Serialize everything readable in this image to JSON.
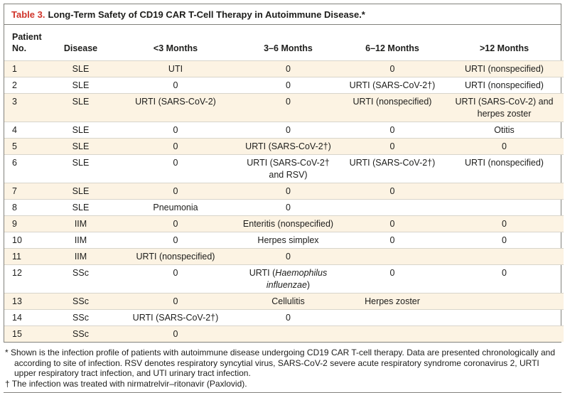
{
  "title": {
    "label": "Table 3.",
    "text": "Long-Term Safety of CD19 CAR T-Cell Therapy in Autoimmune Disease.*"
  },
  "table": {
    "columns": [
      {
        "label": "Patient\nNo.",
        "align": "left"
      },
      {
        "label": "Disease",
        "align": "center"
      },
      {
        "label": "<3 Months",
        "align": "center"
      },
      {
        "label": "3–6 Months",
        "align": "center"
      },
      {
        "label": "6–12 Months",
        "align": "center"
      },
      {
        "label": ">12 Months",
        "align": "center"
      }
    ],
    "rows": [
      [
        "1",
        "SLE",
        "UTI",
        "0",
        "0",
        "URTI (nonspecified)"
      ],
      [
        "2",
        "SLE",
        "0",
        "0",
        "URTI (SARS-CoV-2†)",
        "URTI (nonspecified)"
      ],
      [
        "3",
        "SLE",
        "URTI (SARS-CoV-2)",
        "0",
        "URTI (nonspecified)",
        "URTI (SARS-CoV-2) and her­pes zoster"
      ],
      [
        "4",
        "SLE",
        "0",
        "0",
        "0",
        "Otitis"
      ],
      [
        "5",
        "SLE",
        "0",
        "URTI (SARS-CoV-2†)",
        "0",
        "0"
      ],
      [
        "6",
        "SLE",
        "0",
        "URTI (SARS-CoV-2† and RSV)",
        "URTI (SARS-CoV-2†)",
        "URTI (nonspecified)"
      ],
      [
        "7",
        "SLE",
        "0",
        "0",
        "0",
        ""
      ],
      [
        "8",
        "SLE",
        "Pneumonia",
        "0",
        "",
        ""
      ],
      [
        "9",
        "IIM",
        "0",
        "Enteritis (nonspecified)",
        "0",
        "0"
      ],
      [
        "10",
        "IIM",
        "0",
        "Herpes simplex",
        "0",
        "0"
      ],
      [
        "11",
        "IIM",
        "URTI (nonspecified)",
        "0",
        "",
        ""
      ],
      [
        "12",
        "SSc",
        "0",
        [
          "URTI (",
          {
            "i": "Haemophilus influ­enzae"
          },
          ")"
        ],
        "0",
        "0"
      ],
      [
        "13",
        "SSc",
        "0",
        "Cellulitis",
        "Herpes zoster",
        ""
      ],
      [
        "14",
        "SSc",
        "URTI (SARS-CoV-2†)",
        "0",
        "",
        ""
      ],
      [
        "15",
        "SSc",
        "0",
        "",
        "",
        ""
      ]
    ]
  },
  "footnotes": [
    {
      "marker": "*",
      "text": "Shown is the infection profile of patients with autoimmune disease undergoing CD19 CAR T-cell therapy. Data are presented chronologically and according to site of infection. RSV denotes respiratory syncytial virus, SARS-CoV-2 severe acute respiratory syndrome coronavirus 2, URTI upper respiratory tract infection, and UTI urinary tract infection."
    },
    {
      "marker": "†",
      "text": "The infection was treated with nirmatrelvir–ritonavir (Paxlovid)."
    }
  ],
  "colors": {
    "title_red": "#d0342a",
    "stripe": "#fcf3e3",
    "border": "#82817c",
    "row_line": "#d8d5cb",
    "text": "#1d1d1b"
  }
}
